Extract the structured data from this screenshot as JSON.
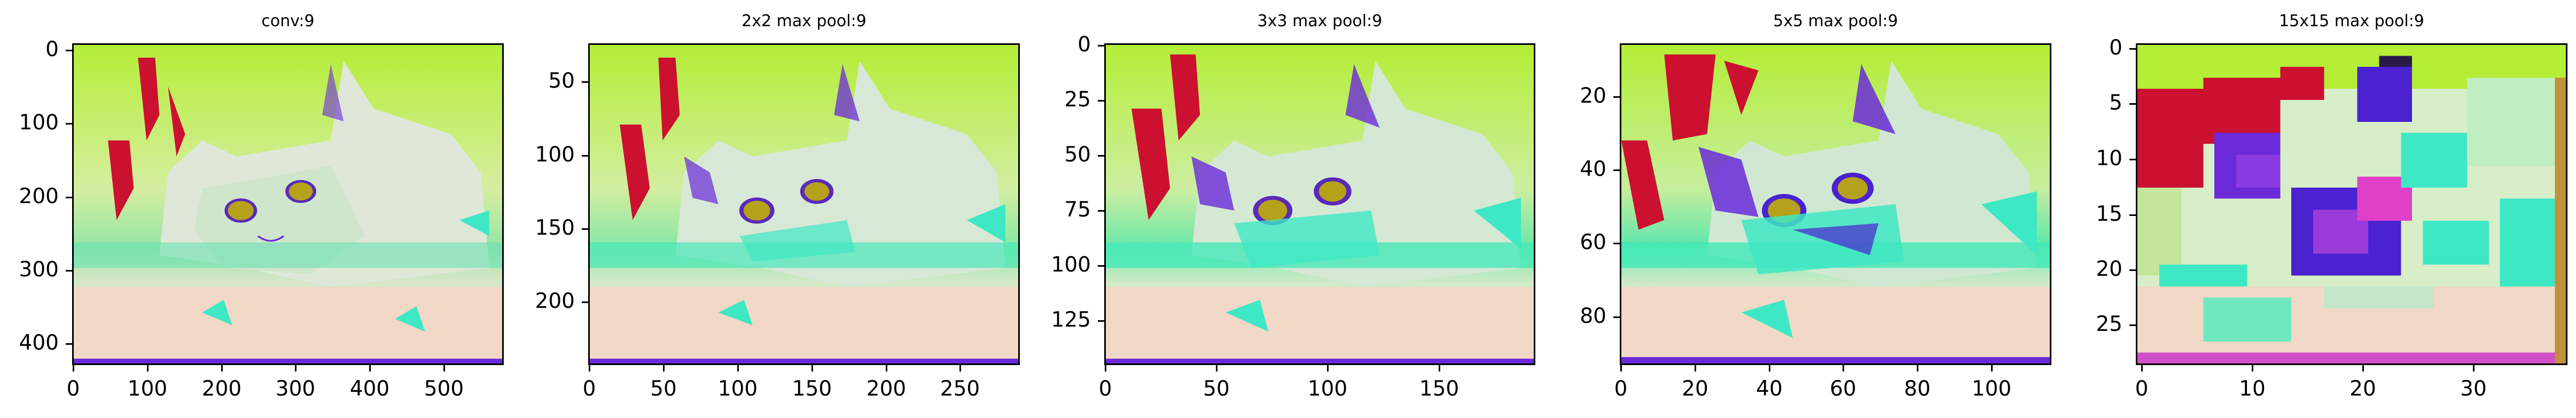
{
  "figure": {
    "panels": [
      {
        "title": "conv:9",
        "x_ticks": [
          "0",
          "100",
          "200",
          "300",
          "400",
          "500"
        ],
        "y_ticks": [
          "0",
          "100",
          "200",
          "300",
          "400"
        ]
      },
      {
        "title": "2x2 max pool:9",
        "x_ticks": [
          "0",
          "50",
          "100",
          "150",
          "200",
          "250"
        ],
        "y_ticks": [
          "50",
          "100",
          "150",
          "200"
        ]
      },
      {
        "title": "3x3 max pool:9",
        "x_ticks": [
          "0",
          "50",
          "100",
          "150"
        ],
        "y_ticks": [
          "0",
          "25",
          "50",
          "75",
          "100",
          "125"
        ]
      },
      {
        "title": "5x5 max pool:9",
        "x_ticks": [
          "0",
          "20",
          "40",
          "60",
          "80",
          "100"
        ],
        "y_ticks": [
          "20",
          "40",
          "60",
          "80"
        ]
      },
      {
        "title": "15x15 max pool:9",
        "x_ticks": [
          "0",
          "10",
          "20",
          "30"
        ],
        "y_ticks": [
          "0",
          "5",
          "10",
          "15",
          "20",
          "25"
        ]
      }
    ],
    "colors": {
      "background_top": "#b8f03c",
      "background_mid": "#d8ec9a",
      "cat_body": "#dde6d6",
      "teal": "#3ee8c4",
      "red_patch": "#cc1030",
      "purple": "#6a2ad8",
      "peach": "#f2d8c6"
    }
  }
}
